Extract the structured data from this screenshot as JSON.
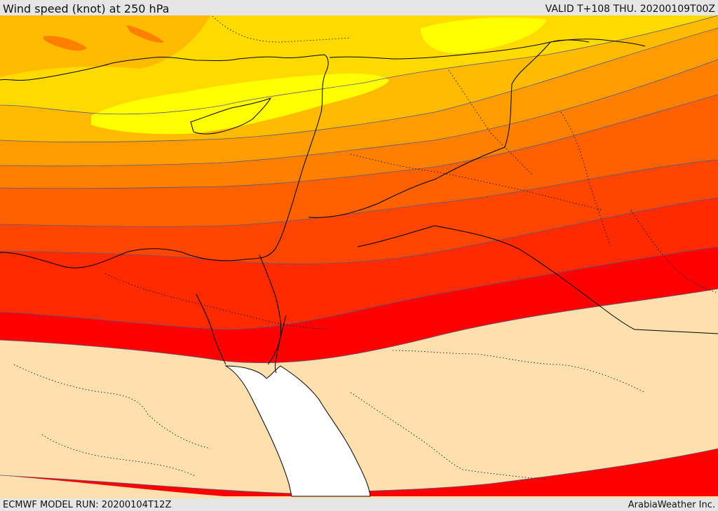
{
  "header": {
    "title": "Wind speed (knot) at 250 hPa",
    "valid": "VALID T+108 THU. 20200109T00Z"
  },
  "footer": {
    "model_run": "ECMWF MODEL RUN: 20200104T12Z",
    "credit": "ArabiaWeather Inc."
  },
  "colors": {
    "calm_fill": "#fde0ad",
    "sea_fill": "#ffffff",
    "bands": [
      "#ff0000",
      "#ff2a00",
      "#ff4500",
      "#ff6000",
      "#ff7f00",
      "#ff9d00",
      "#ffbb00",
      "#ffda00",
      "#ffff00"
    ],
    "coast": "#000000",
    "contour": "#5a5a7a"
  }
}
